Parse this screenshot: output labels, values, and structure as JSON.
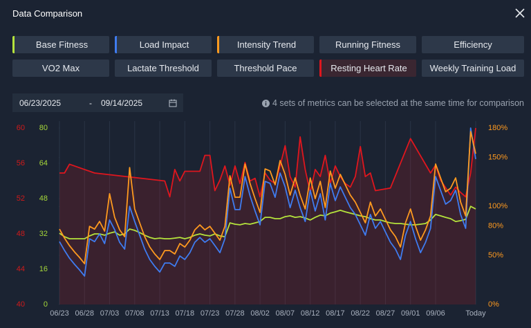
{
  "header": {
    "title": "Data Comparison"
  },
  "metrics": [
    {
      "label": "Base Fitness",
      "selected": true,
      "color": "#b5e43c"
    },
    {
      "label": "Load Impact",
      "selected": true,
      "color": "#3f7cf0"
    },
    {
      "label": "Intensity Trend",
      "selected": true,
      "color": "#ff9a1f"
    },
    {
      "label": "Running Fitness",
      "selected": false
    },
    {
      "label": "Efficiency",
      "selected": false
    },
    {
      "label": "VO2 Max",
      "selected": false
    },
    {
      "label": "Lactate Threshold",
      "selected": false
    },
    {
      "label": "Threshold Pace",
      "selected": false
    },
    {
      "label": "Resting Heart Rate",
      "selected": true,
      "color": "#e0161e"
    },
    {
      "label": "Weekly Training Load",
      "selected": false
    }
  ],
  "date_range": {
    "start": "06/23/2025",
    "separator": "-",
    "end": "09/14/2025"
  },
  "info": "4 sets of metrics can be selected at the same time for comparison",
  "chart_data": {
    "type": "line",
    "grid": true,
    "axis_colors": {
      "y": "#a6d83a",
      "y2": "#ff9a1f",
      "y3": "#d11a1a"
    },
    "x": [
      0,
      1,
      2,
      3,
      4,
      5,
      6,
      7,
      8,
      9,
      10,
      11,
      12,
      13,
      14,
      15,
      16,
      17,
      18,
      19,
      20,
      21,
      22,
      23,
      24,
      25,
      26,
      27,
      28,
      29,
      30,
      31,
      32,
      33,
      34,
      35,
      36,
      37,
      38,
      39,
      40,
      41,
      42,
      43,
      44,
      45,
      46,
      47,
      48,
      49,
      50,
      51,
      52,
      53,
      54,
      55,
      56,
      57,
      58,
      59,
      60,
      61,
      62,
      63,
      64,
      65,
      66,
      67,
      68,
      69,
      70,
      71,
      72,
      73,
      74,
      75,
      76,
      77,
      78,
      79,
      80,
      81,
      82,
      83
    ],
    "xlim": [
      0,
      83
    ],
    "xticks": [
      {
        "value": 0,
        "label": "06/23"
      },
      {
        "value": 5,
        "label": "06/28"
      },
      {
        "value": 10,
        "label": "07/03"
      },
      {
        "value": 15,
        "label": "07/08"
      },
      {
        "value": 20,
        "label": "07/13"
      },
      {
        "value": 25,
        "label": "07/18"
      },
      {
        "value": 30,
        "label": "07/23"
      },
      {
        "value": 35,
        "label": "07/28"
      },
      {
        "value": 40,
        "label": "08/02"
      },
      {
        "value": 45,
        "label": "08/07"
      },
      {
        "value": 50,
        "label": "08/12"
      },
      {
        "value": 55,
        "label": "08/17"
      },
      {
        "value": 60,
        "label": "08/22"
      },
      {
        "value": 65,
        "label": "08/27"
      },
      {
        "value": 70,
        "label": "09/01"
      },
      {
        "value": 75,
        "label": "09/06"
      },
      {
        "value": 83,
        "label": "Today"
      }
    ],
    "ylim": [
      0,
      80
    ],
    "yticks": [
      0,
      16,
      32,
      48,
      64,
      80
    ],
    "y2lim": [
      0,
      180
    ],
    "y2ticks": [
      {
        "value": 0,
        "label": "0%"
      },
      {
        "value": 50,
        "label": "50%"
      },
      {
        "value": 80,
        "label": "80%"
      },
      {
        "value": 100,
        "label": "100%"
      },
      {
        "value": 150,
        "label": "150%"
      },
      {
        "value": 180,
        "label": "180%"
      }
    ],
    "y3lim": [
      40,
      60
    ],
    "y3ticks": [
      40,
      44,
      48,
      52,
      56,
      60
    ],
    "series": [
      {
        "name": "Resting Heart Rate",
        "color": "#e0161e",
        "axis": "y3",
        "fill": true,
        "x": [
          0,
          1,
          2,
          7,
          21,
          22,
          23,
          24,
          25,
          28,
          29,
          30,
          31,
          32,
          33,
          34,
          35,
          36,
          37,
          38,
          39,
          40,
          41,
          42,
          43,
          44,
          45,
          46,
          47,
          48,
          49,
          50,
          51,
          52,
          53,
          54,
          55,
          56,
          57,
          58,
          59,
          60,
          61,
          62,
          63,
          66,
          70,
          74,
          75,
          76,
          78,
          79,
          80,
          81,
          82,
          83
        ],
        "values": [
          54.9,
          54.9,
          55.9,
          54.9,
          54,
          52.2,
          55.3,
          54,
          55.1,
          55.1,
          56.9,
          56.9,
          52.9,
          54.1,
          55.7,
          53.5,
          55.7,
          53.7,
          56.1,
          54,
          54.3,
          52.2,
          54.9,
          54.1,
          53.7,
          55.7,
          58,
          54.5,
          53.3,
          59,
          55.3,
          52.7,
          55.3,
          54.5,
          56.9,
          53.7,
          55.7,
          54.5,
          53.7,
          53.3,
          54.5,
          57.9,
          54.5,
          54.9,
          52.9,
          53.2,
          58.8,
          54.9,
          55.8,
          54.1,
          52.4,
          53.3,
          52.7,
          52.2,
          54.9,
          60
        ]
      },
      {
        "name": "Base Fitness",
        "color": "#b5e43c",
        "axis": "y",
        "values": [
          32.3,
          30.7,
          29.8,
          29.8,
          29.8,
          29.8,
          31.1,
          32,
          32,
          31.4,
          32.3,
          32.9,
          31.4,
          32,
          34.2,
          33.6,
          32.6,
          31.4,
          30.4,
          29.8,
          30.1,
          29.8,
          29.8,
          30.1,
          30.4,
          29.8,
          30.4,
          31.4,
          32,
          31.4,
          31.1,
          32,
          31.1,
          30.7,
          37,
          36.4,
          36.1,
          36.7,
          36.4,
          37,
          37.6,
          39.5,
          39.5,
          38.9,
          38.9,
          39.8,
          40.2,
          39.5,
          39.8,
          39.2,
          38.3,
          39.5,
          40.5,
          40.2,
          41.4,
          42,
          42.7,
          42,
          41.4,
          40.8,
          40.2,
          39.8,
          38.9,
          38.3,
          38.3,
          37.6,
          37,
          36.7,
          36.7,
          36.4,
          36.1,
          36.1,
          36.4,
          36.7,
          38.3,
          40.8,
          40.2,
          39.5,
          38.9,
          37.6,
          38,
          38.6,
          44.5,
          43.3
        ]
      },
      {
        "name": "Load Impact",
        "color": "#3f7cf0",
        "axis": "y",
        "values": [
          28.5,
          24.5,
          21,
          18.2,
          15.7,
          12.9,
          29.8,
          28.5,
          32,
          27.6,
          38.3,
          33.9,
          28.2,
          25.1,
          44.5,
          37.6,
          31.4,
          25.1,
          20.4,
          17.3,
          14.7,
          18.8,
          18.8,
          17.3,
          22,
          20.4,
          23.5,
          28.2,
          30.4,
          28.2,
          29.8,
          26.7,
          23.5,
          29.8,
          52.7,
          43,
          43,
          58,
          49.3,
          42.4,
          36.1,
          55.8,
          54.9,
          48.6,
          59.6,
          53.3,
          43.9,
          51.8,
          43.9,
          37.6,
          51.8,
          42.4,
          50.2,
          38.3,
          54.9,
          47.1,
          53.3,
          48.6,
          43.9,
          40.8,
          36.1,
          31.4,
          40.8,
          34.5,
          37.6,
          32.9,
          28.2,
          25.1,
          20.4,
          31.4,
          37.6,
          29.8,
          23.5,
          28.2,
          34.5,
          58,
          51.8,
          45.5,
          47.1,
          51.8,
          40.8,
          34.5,
          80,
          65.9
        ]
      },
      {
        "name": "Intensity Trend",
        "color": "#ff9a1f",
        "axis": "y2",
        "values": [
          76.9,
          67.7,
          60,
          53.6,
          48,
          41.6,
          79.7,
          76.9,
          84.7,
          74.8,
          113,
          88.9,
          76.2,
          69.2,
          139.7,
          97.4,
          83.3,
          69.2,
          58.6,
          51.5,
          45.9,
          55,
          55,
          51.5,
          62.1,
          58.6,
          65.6,
          76.2,
          81.2,
          76.2,
          79.7,
          72.7,
          65.6,
          79.7,
          131.3,
          109.4,
          109.4,
          143.3,
          123.5,
          108,
          93.9,
          138.3,
          136.2,
          122.1,
          146.8,
          132.7,
          111.5,
          129.1,
          111.5,
          97.4,
          129.1,
          108,
          125.6,
          98.8,
          136.2,
          118.6,
          132.7,
          122.1,
          111.5,
          104.4,
          93.9,
          83.3,
          104.4,
          90.3,
          97.4,
          86.8,
          76.2,
          69.2,
          58.6,
          83.3,
          97.4,
          79.7,
          65.6,
          76.2,
          90.3,
          143.3,
          129.1,
          115,
          118.6,
          129.1,
          104.4,
          90.3,
          176.4,
          153.8
        ]
      }
    ]
  }
}
